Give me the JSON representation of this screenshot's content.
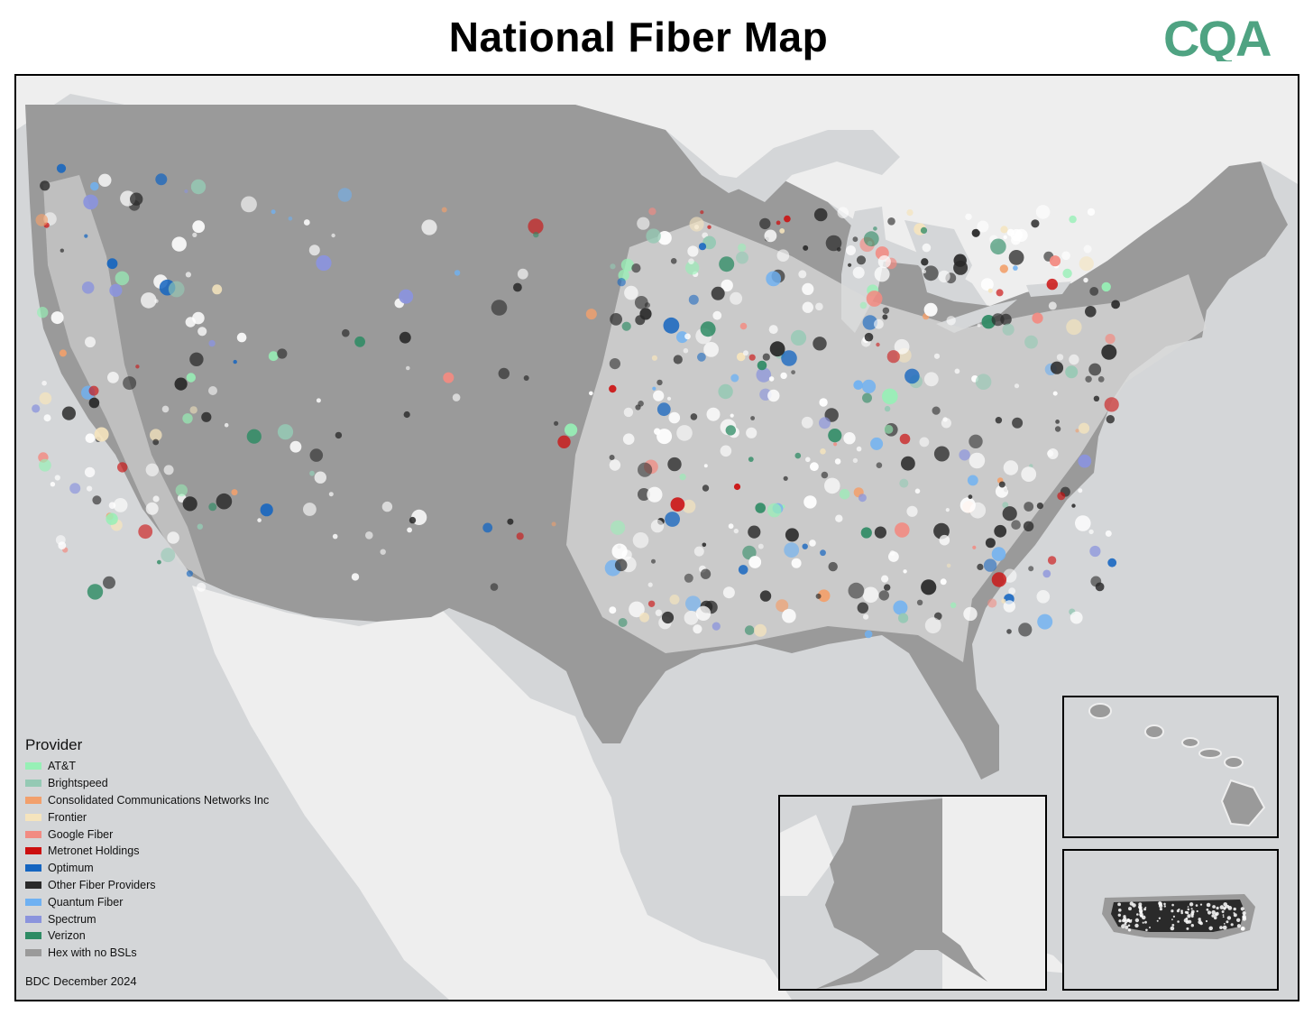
{
  "title": "National Fiber Map",
  "logo_text": "CQA",
  "colors": {
    "logo": "#4fa382",
    "land_us": "#9a9a9a",
    "land_other": "#eeeeee",
    "water": "#d4d6d8",
    "covered_light": "#d9d9d9"
  },
  "legend": {
    "title": "Provider",
    "items": [
      {
        "label": "AT&T",
        "color": "#97f0b6"
      },
      {
        "label": "Brightspeed",
        "color": "#95c9b4"
      },
      {
        "label": "Consolidated Communications Networks Inc",
        "color": "#f2a06c"
      },
      {
        "label": "Frontier",
        "color": "#f5e4bd"
      },
      {
        "label": "Google Fiber",
        "color": "#f28b82"
      },
      {
        "label": "Metronet Holdings",
        "color": "#cc0f0f"
      },
      {
        "label": "Optimum",
        "color": "#1565c0"
      },
      {
        "label": "Other Fiber Providers",
        "color": "#2a2a2a"
      },
      {
        "label": "Quantum Fiber",
        "color": "#6fb1f2"
      },
      {
        "label": "Spectrum",
        "color": "#8b94dd"
      },
      {
        "label": "Verizon",
        "color": "#2e8b64"
      },
      {
        "label": "Hex with no BSLs",
        "color": "#9a9a9a"
      }
    ]
  },
  "source": "BDC December 2024",
  "insets": [
    {
      "name": "Alaska"
    },
    {
      "name": "Hawaii"
    },
    {
      "name": "Puerto Rico"
    }
  ]
}
